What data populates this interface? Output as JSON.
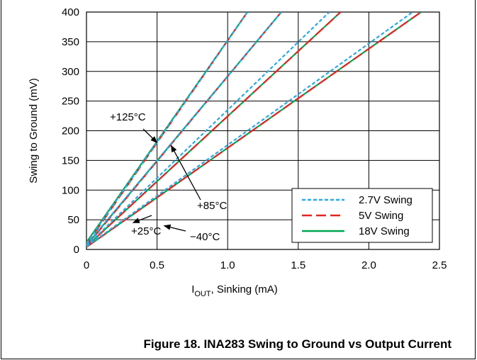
{
  "caption": "Figure 18. INA283 Swing to Ground vs Output Current",
  "chart_data": {
    "type": "line",
    "xlabel_main": "I",
    "xlabel_sub": "OUT",
    "xlabel_rest": ", Sinking (mA)",
    "ylabel": "Swing to Ground (mV)",
    "xlim": [
      0,
      2.5
    ],
    "ylim": [
      0,
      400
    ],
    "x_ticks": [
      "0",
      "0.5",
      "1.0",
      "1.5",
      "2.0",
      "2.5"
    ],
    "x_tick_values": [
      0,
      0.5,
      1.0,
      1.5,
      2.0,
      2.5
    ],
    "y_ticks": [
      "0",
      "50",
      "100",
      "150",
      "200",
      "250",
      "300",
      "350",
      "400"
    ],
    "y_tick_values": [
      0,
      50,
      100,
      150,
      200,
      250,
      300,
      350,
      400
    ],
    "grid": true,
    "legend_position": "bottom-right",
    "legend": [
      {
        "label": "2.7V Swing",
        "color": "#29abe2",
        "style": "dotted"
      },
      {
        "label": "5V Swing",
        "color": "#e0261f",
        "style": "dashed"
      },
      {
        "label": "18V Swing",
        "color": "#00a651",
        "style": "solid"
      }
    ],
    "series": [
      {
        "temp": "+125°C",
        "supply": "2.7V",
        "x": [
          0,
          1.14
        ],
        "y": [
          10,
          400
        ]
      },
      {
        "temp": "+125°C",
        "supply": "5V",
        "x": [
          0,
          1.14
        ],
        "y": [
          8,
          400
        ]
      },
      {
        "temp": "+125°C",
        "supply": "18V",
        "x": [
          0,
          1.14
        ],
        "y": [
          12,
          400
        ]
      },
      {
        "temp": "+85°C",
        "supply": "2.7V",
        "x": [
          0,
          1.38
        ],
        "y": [
          8,
          400
        ]
      },
      {
        "temp": "+85°C",
        "supply": "5V",
        "x": [
          0,
          1.38
        ],
        "y": [
          6,
          400
        ]
      },
      {
        "temp": "+85°C",
        "supply": "18V",
        "x": [
          0,
          1.38
        ],
        "y": [
          7,
          400
        ]
      },
      {
        "temp": "+25°C",
        "supply": "2.7V",
        "x": [
          0,
          1.72
        ],
        "y": [
          6,
          400
        ]
      },
      {
        "temp": "+25°C",
        "supply": "5V",
        "x": [
          0,
          1.8
        ],
        "y": [
          5,
          400
        ]
      },
      {
        "temp": "+25°C",
        "supply": "18V",
        "x": [
          0,
          1.8
        ],
        "y": [
          5,
          400
        ]
      },
      {
        "temp": "-40°C",
        "supply": "2.7V",
        "x": [
          0,
          2.31
        ],
        "y": [
          5,
          400
        ]
      },
      {
        "temp": "-40°C",
        "supply": "5V",
        "x": [
          0,
          2.37
        ],
        "y": [
          4,
          400
        ]
      },
      {
        "temp": "-40°C",
        "supply": "18V",
        "x": [
          0,
          2.37
        ],
        "y": [
          4,
          400
        ]
      }
    ],
    "annotations": [
      {
        "text": "+125°C",
        "tip": [
          0.5,
          180
        ]
      },
      {
        "text": "+85°C",
        "tip": [
          0.6,
          175
        ]
      },
      {
        "text": "+25°C",
        "tip": [
          0.33,
          45
        ]
      },
      {
        "text": "−40°C",
        "tip": [
          0.55,
          40
        ]
      }
    ]
  }
}
